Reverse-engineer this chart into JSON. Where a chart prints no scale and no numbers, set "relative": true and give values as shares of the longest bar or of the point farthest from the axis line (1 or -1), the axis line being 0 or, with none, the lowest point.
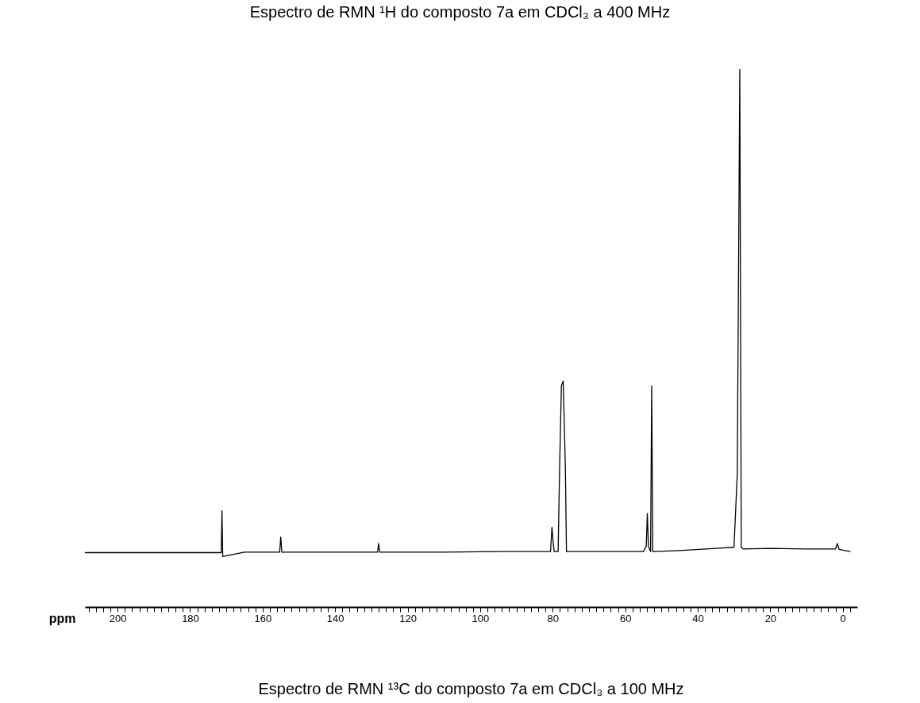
{
  "chart_data": {
    "type": "line",
    "title": "Espectro de RMN ¹³C do composto 7a em CDCl₃ a 100 MHz",
    "xlabel": "ppm",
    "annotations": [
      "Espectro de RMN ¹H do composto 7a em CDCl₃ a 400 MHz"
    ],
    "relative": true,
    "tick_labels": "x",
    "grid": false,
    "series": [
      {
        "color": "#000000",
        "line_style": "solid",
        "marker": "none",
        "x": [
          209,
          200,
          190,
          180,
          172,
          171.4,
          171.2,
          171.0,
          165,
          155.3,
          155.0,
          154.7,
          140,
          128.3,
          128.0,
          127.7,
          110,
          95,
          85,
          80.6,
          80.2,
          79.9,
          79.6,
          78.5,
          78.1,
          77.6,
          77.1,
          76.5,
          76.2,
          70,
          60,
          55,
          54.2,
          53.9,
          53.6,
          53.0,
          52.7,
          52.4,
          45,
          35,
          30,
          29.1,
          28.4,
          28.0,
          27.5,
          20,
          10,
          2,
          1.5,
          1.0,
          -2
        ],
        "values": [
          0.101,
          0.101,
          0.101,
          0.101,
          0.101,
          0.101,
          0.179,
          0.094,
          0.102,
          0.102,
          0.13,
          0.102,
          0.102,
          0.102,
          0.118,
          0.102,
          0.102,
          0.103,
          0.103,
          0.103,
          0.148,
          0.122,
          0.103,
          0.103,
          0.257,
          0.411,
          0.42,
          0.257,
          0.103,
          0.103,
          0.103,
          0.103,
          0.113,
          0.174,
          0.113,
          0.103,
          0.411,
          0.103,
          0.105,
          0.109,
          0.111,
          0.248,
          1,
          0.111,
          0.108,
          0.109,
          0.108,
          0.108,
          0.118,
          0.107,
          0.103
        ]
      }
    ],
    "xlim": [
      209,
      -4
    ],
    "xticks": [
      {
        "value": 208,
        "label": null
      },
      {
        "value": 206,
        "label": null
      },
      {
        "value": 204,
        "label": null
      },
      {
        "value": 202,
        "label": null
      },
      200,
      {
        "value": 198,
        "label": null
      },
      {
        "value": 196,
        "label": null
      },
      {
        "value": 194,
        "label": null
      },
      {
        "value": 192,
        "label": null
      },
      {
        "value": 190,
        "label": null
      },
      {
        "value": 188,
        "label": null
      },
      {
        "value": 186,
        "label": null
      },
      {
        "value": 184,
        "label": null
      },
      {
        "value": 182,
        "label": null
      },
      180,
      {
        "value": 178,
        "label": null
      },
      {
        "value": 176,
        "label": null
      },
      {
        "value": 174,
        "label": null
      },
      {
        "value": 172,
        "label": null
      },
      {
        "value": 170,
        "label": null
      },
      {
        "value": 168,
        "label": null
      },
      {
        "value": 166,
        "label": null
      },
      {
        "value": 164,
        "label": null
      },
      {
        "value": 162,
        "label": null
      },
      160,
      {
        "value": 158,
        "label": null
      },
      {
        "value": 156,
        "label": null
      },
      {
        "value": 154,
        "label": null
      },
      {
        "value": 152,
        "label": null
      },
      {
        "value": 150,
        "label": null
      },
      {
        "value": 148,
        "label": null
      },
      {
        "value": 146,
        "label": null
      },
      {
        "value": 144,
        "label": null
      },
      {
        "value": 142,
        "label": null
      },
      140,
      {
        "value": 138,
        "label": null
      },
      {
        "value": 136,
        "label": null
      },
      {
        "value": 134,
        "label": null
      },
      {
        "value": 132,
        "label": null
      },
      {
        "value": 130,
        "label": null
      },
      {
        "value": 128,
        "label": null
      },
      {
        "value": 126,
        "label": null
      },
      {
        "value": 124,
        "label": null
      },
      {
        "value": 122,
        "label": null
      },
      120,
      {
        "value": 118,
        "label": null
      },
      {
        "value": 116,
        "label": null
      },
      {
        "value": 114,
        "label": null
      },
      {
        "value": 112,
        "label": null
      },
      {
        "value": 110,
        "label": null
      },
      {
        "value": 108,
        "label": null
      },
      {
        "value": 106,
        "label": null
      },
      {
        "value": 104,
        "label": null
      },
      {
        "value": 102,
        "label": null
      },
      100,
      {
        "value": 98,
        "label": null
      },
      {
        "value": 96,
        "label": null
      },
      {
        "value": 94,
        "label": null
      },
      {
        "value": 92,
        "label": null
      },
      {
        "value": 90,
        "label": null
      },
      {
        "value": 88,
        "label": null
      },
      {
        "value": 86,
        "label": null
      },
      {
        "value": 84,
        "label": null
      },
      {
        "value": 82,
        "label": null
      },
      80,
      {
        "value": 78,
        "label": null
      },
      {
        "value": 76,
        "label": null
      },
      {
        "value": 74,
        "label": null
      },
      {
        "value": 72,
        "label": null
      },
      {
        "value": 70,
        "label": null
      },
      {
        "value": 68,
        "label": null
      },
      {
        "value": 66,
        "label": null
      },
      {
        "value": 64,
        "label": null
      },
      {
        "value": 62,
        "label": null
      },
      60,
      {
        "value": 58,
        "label": null
      },
      {
        "value": 56,
        "label": null
      },
      {
        "value": 54,
        "label": null
      },
      {
        "value": 52,
        "label": null
      },
      {
        "value": 50,
        "label": null
      },
      {
        "value": 48,
        "label": null
      },
      {
        "value": 46,
        "label": null
      },
      {
        "value": 44,
        "label": null
      },
      {
        "value": 42,
        "label": null
      },
      40,
      {
        "value": 38,
        "label": null
      },
      {
        "value": 36,
        "label": null
      },
      {
        "value": 34,
        "label": null
      },
      {
        "value": 32,
        "label": null
      },
      {
        "value": 30,
        "label": null
      },
      {
        "value": 28,
        "label": null
      },
      {
        "value": 26,
        "label": null
      },
      {
        "value": 24,
        "label": null
      },
      {
        "value": 22,
        "label": null
      },
      20,
      {
        "value": 18,
        "label": null
      },
      {
        "value": 16,
        "label": null
      },
      {
        "value": 14,
        "label": null
      },
      {
        "value": 12,
        "label": null
      },
      {
        "value": 10,
        "label": null
      },
      {
        "value": 8,
        "label": null
      },
      {
        "value": 6,
        "label": null
      },
      {
        "value": 4,
        "label": null
      },
      {
        "value": 2,
        "label": null
      },
      0,
      {
        "value": -2,
        "label": null
      }
    ]
  }
}
